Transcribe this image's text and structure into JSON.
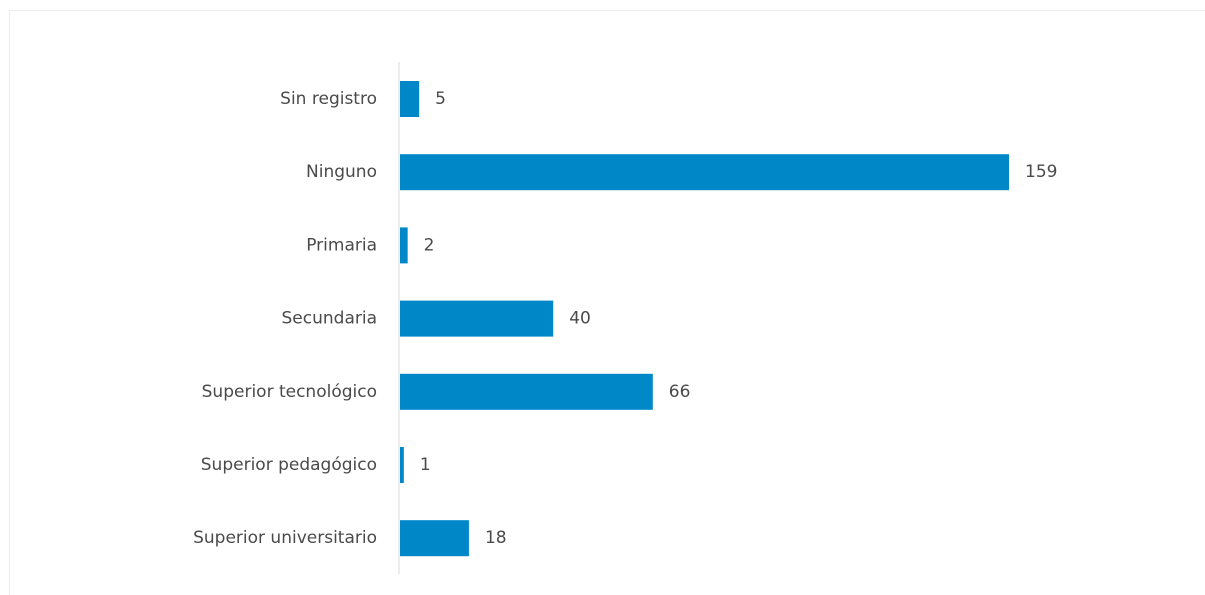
{
  "chart_data": {
    "type": "bar",
    "orientation": "horizontal",
    "categories": [
      "Sin registro",
      "Ninguno",
      "Primaria",
      "Secundaria",
      "Superior tecnológico",
      "Superior pedagógico",
      "Superior universitario"
    ],
    "values": [
      5,
      159,
      2,
      40,
      66,
      1,
      18
    ],
    "title": "",
    "xlabel": "",
    "ylabel": "",
    "data_labels": true,
    "grid": false,
    "legend": "none",
    "bar_color": "#0087c8"
  }
}
